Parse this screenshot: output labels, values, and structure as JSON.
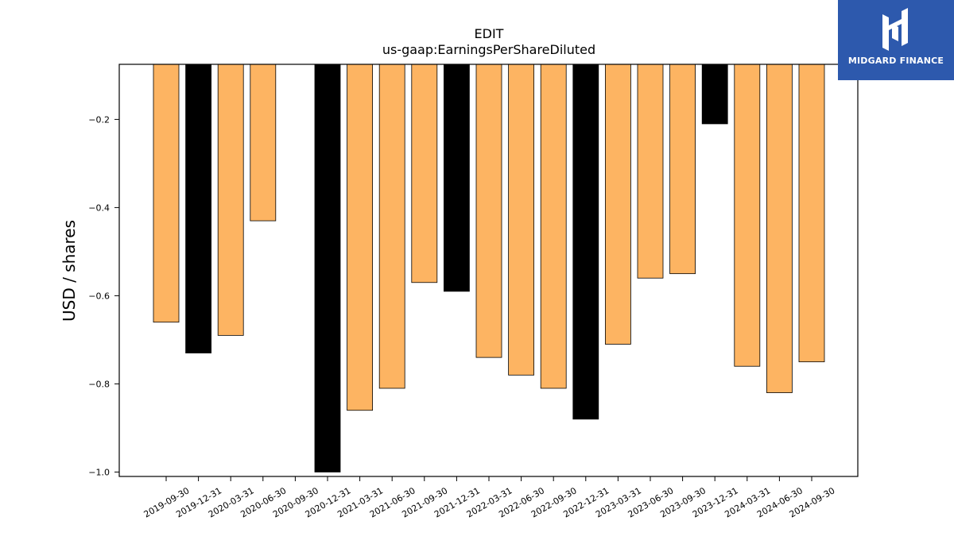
{
  "chart_data": {
    "type": "bar",
    "title": "EDIT",
    "subtitle": "us-gaap:EarningsPerShareDiluted",
    "xlabel": "",
    "ylabel": "USD / shares",
    "ylim": [
      -1.01,
      -0.075
    ],
    "yticks": [
      -1.0,
      -0.8,
      -0.6,
      -0.4,
      -0.2
    ],
    "ytick_labels": [
      "−1.0",
      "−0.8",
      "−0.6",
      "−0.4",
      "−0.2"
    ],
    "grid": false,
    "legend": "none",
    "categories": [
      "2019-09-30",
      "2019-12-31",
      "2020-03-31",
      "2020-06-30",
      "2020-09-30",
      "2020-12-31",
      "2021-03-31",
      "2021-06-30",
      "2021-09-30",
      "2021-12-31",
      "2022-03-31",
      "2022-06-30",
      "2022-09-30",
      "2022-12-31",
      "2023-03-31",
      "2023-06-30",
      "2023-09-30",
      "2023-12-31",
      "2024-03-31",
      "2024-06-30",
      "2024-09-30"
    ],
    "bars": [
      {
        "category": "2019-09-30",
        "value": -0.66,
        "color": "#fdb462"
      },
      {
        "category": "2019-12-31",
        "value": -0.73,
        "color": "#000000"
      },
      {
        "category": "2020-03-31",
        "value": -0.69,
        "color": "#fdb462"
      },
      {
        "category": "2020-06-30",
        "value": -0.43,
        "color": "#fdb462"
      },
      {
        "category": "2020-12-31",
        "value": -1.0,
        "color": "#000000"
      },
      {
        "category": "2021-03-31",
        "value": -0.86,
        "color": "#fdb462"
      },
      {
        "category": "2021-06-30",
        "value": -0.81,
        "color": "#fdb462"
      },
      {
        "category": "2021-09-30",
        "value": -0.57,
        "color": "#fdb462"
      },
      {
        "category": "2021-12-31",
        "value": -0.59,
        "color": "#000000"
      },
      {
        "category": "2022-03-31",
        "value": -0.74,
        "color": "#fdb462"
      },
      {
        "category": "2022-06-30",
        "value": -0.78,
        "color": "#fdb462"
      },
      {
        "category": "2022-09-30",
        "value": -0.81,
        "color": "#fdb462"
      },
      {
        "category": "2022-12-31",
        "value": -0.88,
        "color": "#000000"
      },
      {
        "category": "2023-03-31",
        "value": -0.71,
        "color": "#fdb462"
      },
      {
        "category": "2023-06-30",
        "value": -0.56,
        "color": "#fdb462"
      },
      {
        "category": "2023-09-30",
        "value": -0.55,
        "color": "#fdb462"
      },
      {
        "category": "2023-12-31",
        "value": -0.21,
        "color": "#000000"
      },
      {
        "category": "2024-03-31",
        "value": -0.76,
        "color": "#fdb462"
      },
      {
        "category": "2024-06-30",
        "value": -0.82,
        "color": "#fdb462"
      },
      {
        "category": "2024-09-30",
        "value": -0.75,
        "color": "#fdb462"
      }
    ]
  },
  "logo": {
    "text": "MIDGARD FINANCE",
    "background": "#2d59ad",
    "icon": "midgard-logo-icon"
  }
}
